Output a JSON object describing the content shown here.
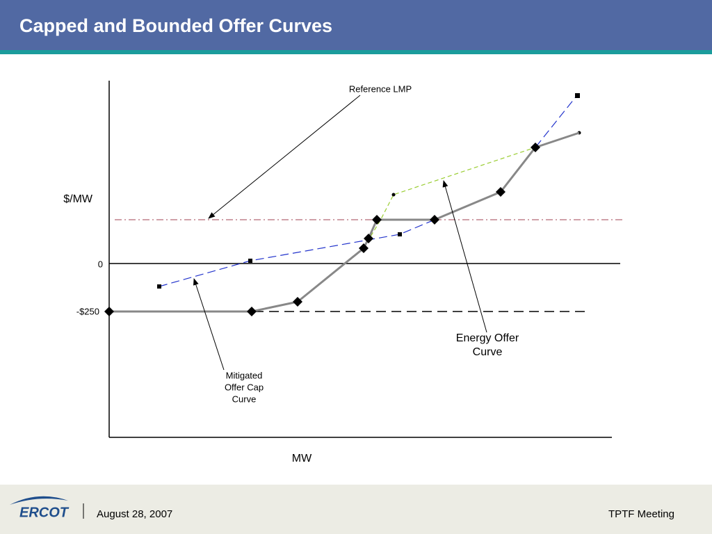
{
  "header": {
    "title": "Capped and Bounded Offer Curves"
  },
  "diagram": {
    "y_axis_label": "$/MW",
    "x_axis_label": "MW",
    "tick_labels": [
      "0",
      "-$250"
    ],
    "annotations": [
      {
        "lines": [
          "Reference LMP"
        ]
      },
      {
        "lines": [
          "Energy Offer",
          "Curve"
        ]
      },
      {
        "lines": [
          "Mitigated",
          "Offer Cap",
          "Curve"
        ]
      }
    ]
  },
  "footer": {
    "logo": "ERCOT",
    "date": "August 28, 2007",
    "meeting": "TPTF Meeting"
  }
}
